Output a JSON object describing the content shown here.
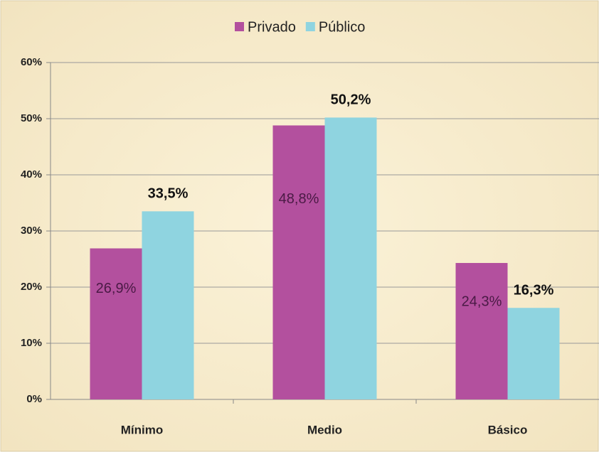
{
  "chart_data": {
    "type": "bar",
    "categories": [
      "Mínimo",
      "Medio",
      "Básico"
    ],
    "series": [
      {
        "name": "Privado",
        "color": "#b3509e",
        "values": [
          26.9,
          48.8,
          24.3
        ],
        "value_labels": [
          "26,9%",
          "48,8%",
          "24,3%"
        ]
      },
      {
        "name": "Público",
        "color": "#8fd4e0",
        "values": [
          33.5,
          50.2,
          16.3
        ],
        "value_labels": [
          "33,5%",
          "50,2%",
          "16,3%"
        ]
      }
    ],
    "ylim": [
      0,
      60
    ],
    "yticks": [
      {
        "value": 0,
        "label": "0%"
      },
      {
        "value": 10,
        "label": "10%"
      },
      {
        "value": 20,
        "label": "20%"
      },
      {
        "value": 30,
        "label": "30%"
      },
      {
        "value": 40,
        "label": "40%"
      },
      {
        "value": 50,
        "label": "50%"
      },
      {
        "value": 60,
        "label": "60%"
      }
    ],
    "grid": true,
    "legend": "top"
  }
}
